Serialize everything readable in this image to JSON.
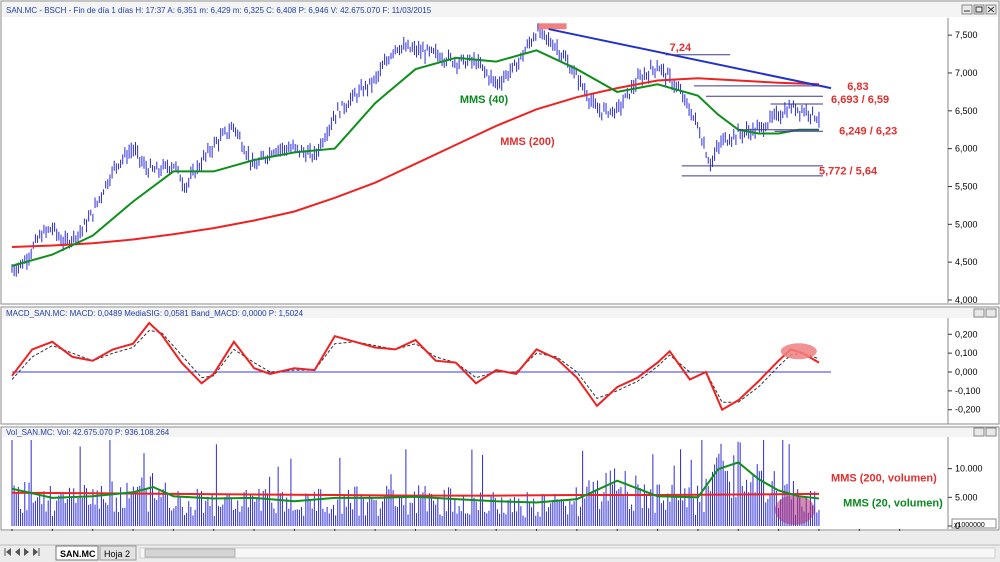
{
  "window": {
    "price_header": "SAN.MC - BSCH - Fin de día 1 días H: 17:37 A: 6,351 m: 6,429 m: 6,325 C: 6,408 P: 6,946 V: 42.675.070 F: 11/03/2015",
    "macd_header": "MACD_SAN.MC: MACD: 0,0489 MediaSIG: 0,0581 Band_MACD: 0,0000 P: 1,5024",
    "vol_header": "Vol_SAN.MC: Vol: 42.675.070 P: 936.108.264",
    "vol_scale_note": "x1000000",
    "tabs": [
      "SAN.MC",
      "Hoja 2"
    ]
  },
  "colors": {
    "price": "#2b2bd6",
    "mms200": "#ee2222",
    "mms40": "#0f8f1c",
    "signal": "#333333",
    "zero_line": "#3a3ae0",
    "trendline": "#2233cc",
    "highlight": "#f08080",
    "support": "#3a3a8a"
  },
  "chart_data": [
    {
      "type": "line",
      "panel": "price",
      "y_axis_ticks": [
        "7,500",
        "7,000",
        "6,500",
        "6,000",
        "5,500",
        "5,000",
        "4,500",
        "4,000"
      ],
      "ylim": [
        4.0,
        7.7
      ],
      "x_ticks": [
        "Ago",
        "Sep",
        "Oct",
        "Nov",
        "Dic",
        "14",
        "Feb",
        "Mar",
        "Abr",
        "May",
        "Jun",
        "Jul",
        "Ago",
        "Sep",
        "Oct",
        "Nov",
        "Dic",
        "15",
        "Feb",
        "Mar",
        "Abr",
        "May",
        "Jun"
      ],
      "series": [
        {
          "name": "price",
          "x": [
            0,
            0.3,
            0.7,
            1.0,
            1.3,
            1.7,
            2.0,
            2.3,
            2.6,
            3.0,
            3.3,
            3.6,
            4.0,
            4.3,
            4.6,
            5.0,
            5.5,
            6.0,
            6.5,
            7.0,
            7.5,
            8.0,
            8.5,
            9.0,
            9.5,
            10.0,
            10.5,
            11.0,
            11.5,
            12.0,
            12.5,
            13.0,
            13.5,
            14.0,
            14.5,
            15.0,
            15.5,
            16.0,
            16.5,
            17.0,
            17.3,
            17.6,
            18.0,
            18.5,
            19.0,
            19.3,
            19.7,
            20.0
          ],
          "values": [
            4.4,
            4.5,
            4.85,
            4.95,
            4.75,
            4.9,
            5.15,
            5.5,
            5.8,
            6.0,
            5.75,
            5.7,
            5.8,
            5.5,
            5.75,
            6.05,
            6.3,
            5.75,
            6.0,
            6.0,
            5.9,
            6.45,
            6.7,
            6.9,
            7.35,
            7.3,
            7.25,
            7.15,
            7.15,
            6.85,
            7.1,
            7.55,
            7.35,
            6.95,
            6.5,
            6.5,
            6.9,
            7.1,
            6.8,
            6.3,
            5.8,
            6.1,
            6.2,
            6.25,
            6.45,
            6.55,
            6.5,
            6.41
          ]
        },
        {
          "name": "MMS (200)",
          "x": [
            0,
            1,
            2,
            3,
            4,
            5,
            6,
            7,
            8,
            9,
            10,
            11,
            12,
            13,
            14,
            15,
            16,
            17,
            18,
            19,
            20
          ],
          "values": [
            4.7,
            4.72,
            4.75,
            4.8,
            4.87,
            4.95,
            5.05,
            5.17,
            5.35,
            5.55,
            5.8,
            6.05,
            6.3,
            6.52,
            6.68,
            6.8,
            6.9,
            6.93,
            6.9,
            6.87,
            6.85
          ]
        },
        {
          "name": "MMS (40)",
          "x": [
            0,
            1,
            2,
            3,
            4,
            5,
            6,
            7,
            8,
            9,
            10,
            11,
            12,
            13,
            14,
            15,
            16,
            17,
            17.5,
            18,
            18.5,
            19,
            19.5,
            20
          ],
          "values": [
            4.45,
            4.6,
            4.85,
            5.3,
            5.7,
            5.7,
            5.85,
            5.95,
            6.0,
            6.6,
            7.05,
            7.2,
            7.15,
            7.3,
            7.05,
            6.75,
            6.85,
            6.7,
            6.45,
            6.25,
            6.2,
            6.2,
            6.25,
            6.25
          ]
        }
      ],
      "annotations": [
        {
          "text": "7,24",
          "value": 7.24
        },
        {
          "text": "6,83",
          "value": 6.83
        },
        {
          "text": "6,693 / 6,59",
          "value": 6.693
        },
        {
          "text": "6,249 / 6,23",
          "value": 6.249
        },
        {
          "text": "5,772 / 5,64",
          "value": 5.772
        },
        {
          "text": "MMS (40)"
        },
        {
          "text": "MMS (200)"
        }
      ],
      "trendline": {
        "from": {
          "x": 13.3,
          "y": 7.58
        },
        "to": {
          "x": 20.3,
          "y": 6.8
        }
      }
    },
    {
      "type": "line",
      "panel": "macd",
      "y_axis_ticks": [
        "0,200",
        "0,100",
        "0,000",
        "-0,100",
        "-0,200"
      ],
      "ylim": [
        -0.26,
        0.26
      ],
      "series": [
        {
          "name": "MACD",
          "x": [
            0,
            0.5,
            1.0,
            1.5,
            2.0,
            2.5,
            3.0,
            3.4,
            3.7,
            4.2,
            4.7,
            5.0,
            5.5,
            6.0,
            6.4,
            7.0,
            7.5,
            8.0,
            8.5,
            9.0,
            9.5,
            10.0,
            10.5,
            11.0,
            11.5,
            12.0,
            12.5,
            13.0,
            13.5,
            14.0,
            14.5,
            15.0,
            15.5,
            16.0,
            16.3,
            16.8,
            17.2,
            17.6,
            18.0,
            18.5,
            19.0,
            19.3,
            19.6,
            20.0
          ],
          "values": [
            -0.02,
            0.12,
            0.16,
            0.08,
            0.06,
            0.12,
            0.15,
            0.26,
            0.2,
            0.05,
            -0.06,
            -0.01,
            0.16,
            0.02,
            -0.01,
            0.02,
            0.01,
            0.19,
            0.16,
            0.13,
            0.12,
            0.17,
            0.06,
            0.05,
            -0.06,
            0.01,
            -0.01,
            0.12,
            0.07,
            -0.03,
            -0.18,
            -0.08,
            -0.03,
            0.05,
            0.11,
            -0.04,
            0.0,
            -0.2,
            -0.15,
            -0.05,
            0.06,
            0.12,
            0.1,
            0.05
          ]
        },
        {
          "name": "MediaSIG",
          "x": [
            0,
            0.5,
            1.0,
            1.5,
            2.0,
            2.5,
            3.0,
            3.4,
            3.7,
            4.2,
            4.7,
            5.0,
            5.5,
            6.0,
            6.4,
            7.0,
            7.5,
            8.0,
            8.5,
            9.0,
            9.5,
            10.0,
            10.5,
            11.0,
            11.5,
            12.0,
            12.5,
            13.0,
            13.5,
            14.0,
            14.5,
            15.0,
            15.5,
            16.0,
            16.3,
            16.8,
            17.2,
            17.6,
            18.0,
            18.5,
            19.0,
            19.3,
            19.6,
            20.0
          ],
          "values": [
            -0.04,
            0.08,
            0.14,
            0.1,
            0.06,
            0.1,
            0.13,
            0.22,
            0.21,
            0.09,
            -0.03,
            -0.02,
            0.12,
            0.05,
            0.0,
            0.01,
            0.01,
            0.15,
            0.16,
            0.14,
            0.12,
            0.15,
            0.08,
            0.05,
            -0.03,
            0.0,
            0.0,
            0.1,
            0.08,
            0.0,
            -0.14,
            -0.1,
            -0.05,
            0.03,
            0.09,
            0.0,
            0.0,
            -0.16,
            -0.16,
            -0.08,
            0.03,
            0.09,
            0.1,
            0.07
          ]
        }
      ],
      "zero_line": 0
    },
    {
      "type": "bar",
      "panel": "volume",
      "y_axis_ticks": [
        "10.000",
        "5.000",
        "0"
      ],
      "ylim": [
        0,
        15000
      ],
      "series": [
        {
          "name": "MMS (200, volumen)",
          "x": [
            0,
            2,
            4,
            6,
            8,
            10,
            12,
            14,
            16,
            18,
            20
          ],
          "values": [
            5800,
            5700,
            5600,
            5500,
            5400,
            5300,
            5300,
            5400,
            5400,
            5500,
            5600
          ]
        },
        {
          "name": "MMS (20, volumen)",
          "x": [
            0,
            1,
            2,
            3,
            3.5,
            4,
            5,
            6,
            7,
            8,
            9,
            10,
            11,
            12,
            13,
            14,
            15,
            16,
            17,
            17.5,
            18,
            18.5,
            19,
            19.5,
            20
          ],
          "values": [
            6500,
            4900,
            5200,
            5900,
            6800,
            5200,
            4800,
            4900,
            4300,
            4900,
            4900,
            5100,
            4700,
            4300,
            4100,
            4700,
            7900,
            5200,
            5000,
            9900,
            11100,
            8200,
            6200,
            5200,
            4800
          ]
        }
      ]
    }
  ]
}
